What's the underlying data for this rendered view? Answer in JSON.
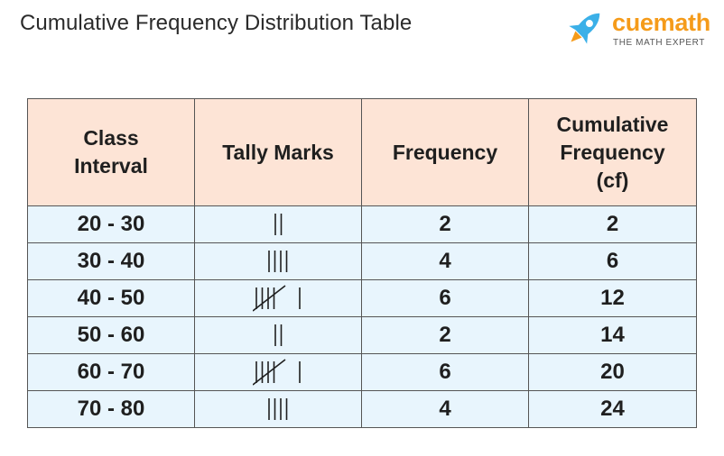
{
  "page": {
    "title": "Cumulative Frequency Distribution Table"
  },
  "brand": {
    "name": "cuemath",
    "tagline": "THE MATH EXPERT",
    "icon": "rocket-icon",
    "colors": {
      "orange": "#f59b1a",
      "blue": "#3bb0e8"
    }
  },
  "table": {
    "header": {
      "class_interval": "Class Interval",
      "tally_marks": "Tally Marks",
      "frequency": "Frequency",
      "cumulative_frequency_line1": "Cumulative",
      "cumulative_frequency_line2": "Frequency",
      "cumulative_frequency_line3": "(cf)"
    },
    "colors": {
      "header_bg": "#fde4d6",
      "body_bg": "#e8f5fd",
      "border": "#555555"
    },
    "rows": [
      {
        "class_interval": "20 - 30",
        "tally": 2,
        "frequency": "2",
        "cf": "2"
      },
      {
        "class_interval": "30 - 40",
        "tally": 4,
        "frequency": "4",
        "cf": "6"
      },
      {
        "class_interval": "40 - 50",
        "tally": 6,
        "frequency": "6",
        "cf": "12"
      },
      {
        "class_interval": "50 - 60",
        "tally": 2,
        "frequency": "2",
        "cf": "14"
      },
      {
        "class_interval": "60 - 70",
        "tally": 6,
        "frequency": "6",
        "cf": "20"
      },
      {
        "class_interval": "70 - 80",
        "tally": 4,
        "frequency": "4",
        "cf": "24"
      }
    ]
  }
}
